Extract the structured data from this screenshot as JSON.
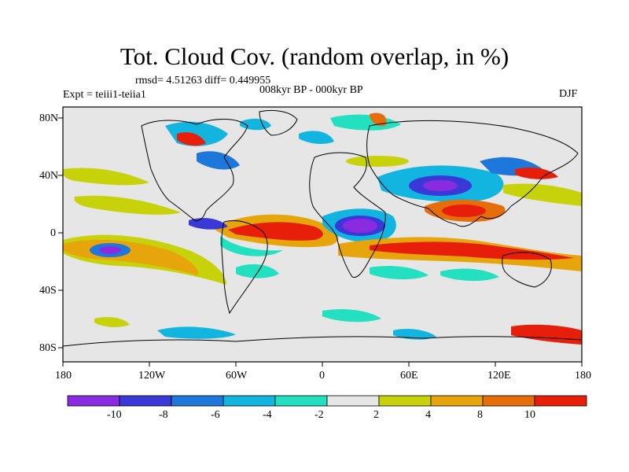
{
  "title": "Tot. Cloud Cov. (random overlap, in %)",
  "stats": "rmsd= 4.51263 diff= 0.449955",
  "experiment": "Expt = teiii1-teiia1",
  "period": "008kyr BP - 000kyr BP",
  "season": "DJF",
  "lat_ticks": [
    "80N",
    "40N",
    "0",
    "40S",
    "80S"
  ],
  "lon_ticks": [
    "180",
    "120W",
    "60W",
    "0",
    "60E",
    "120E",
    "180"
  ],
  "colorbar": {
    "labels": [
      "-10",
      "-8",
      "-6",
      "-4",
      "-2",
      "2",
      "4",
      "8",
      "10"
    ],
    "colors": [
      "#8a2be2",
      "#3a38d6",
      "#1e78dc",
      "#12b4e0",
      "#22e0c0",
      "#e6e6e6",
      "#c8d20a",
      "#e6a50a",
      "#e66e0a",
      "#e61e0a"
    ]
  },
  "colors": {
    "land_outline": "#000000",
    "background_field": "#e6e6e6"
  }
}
